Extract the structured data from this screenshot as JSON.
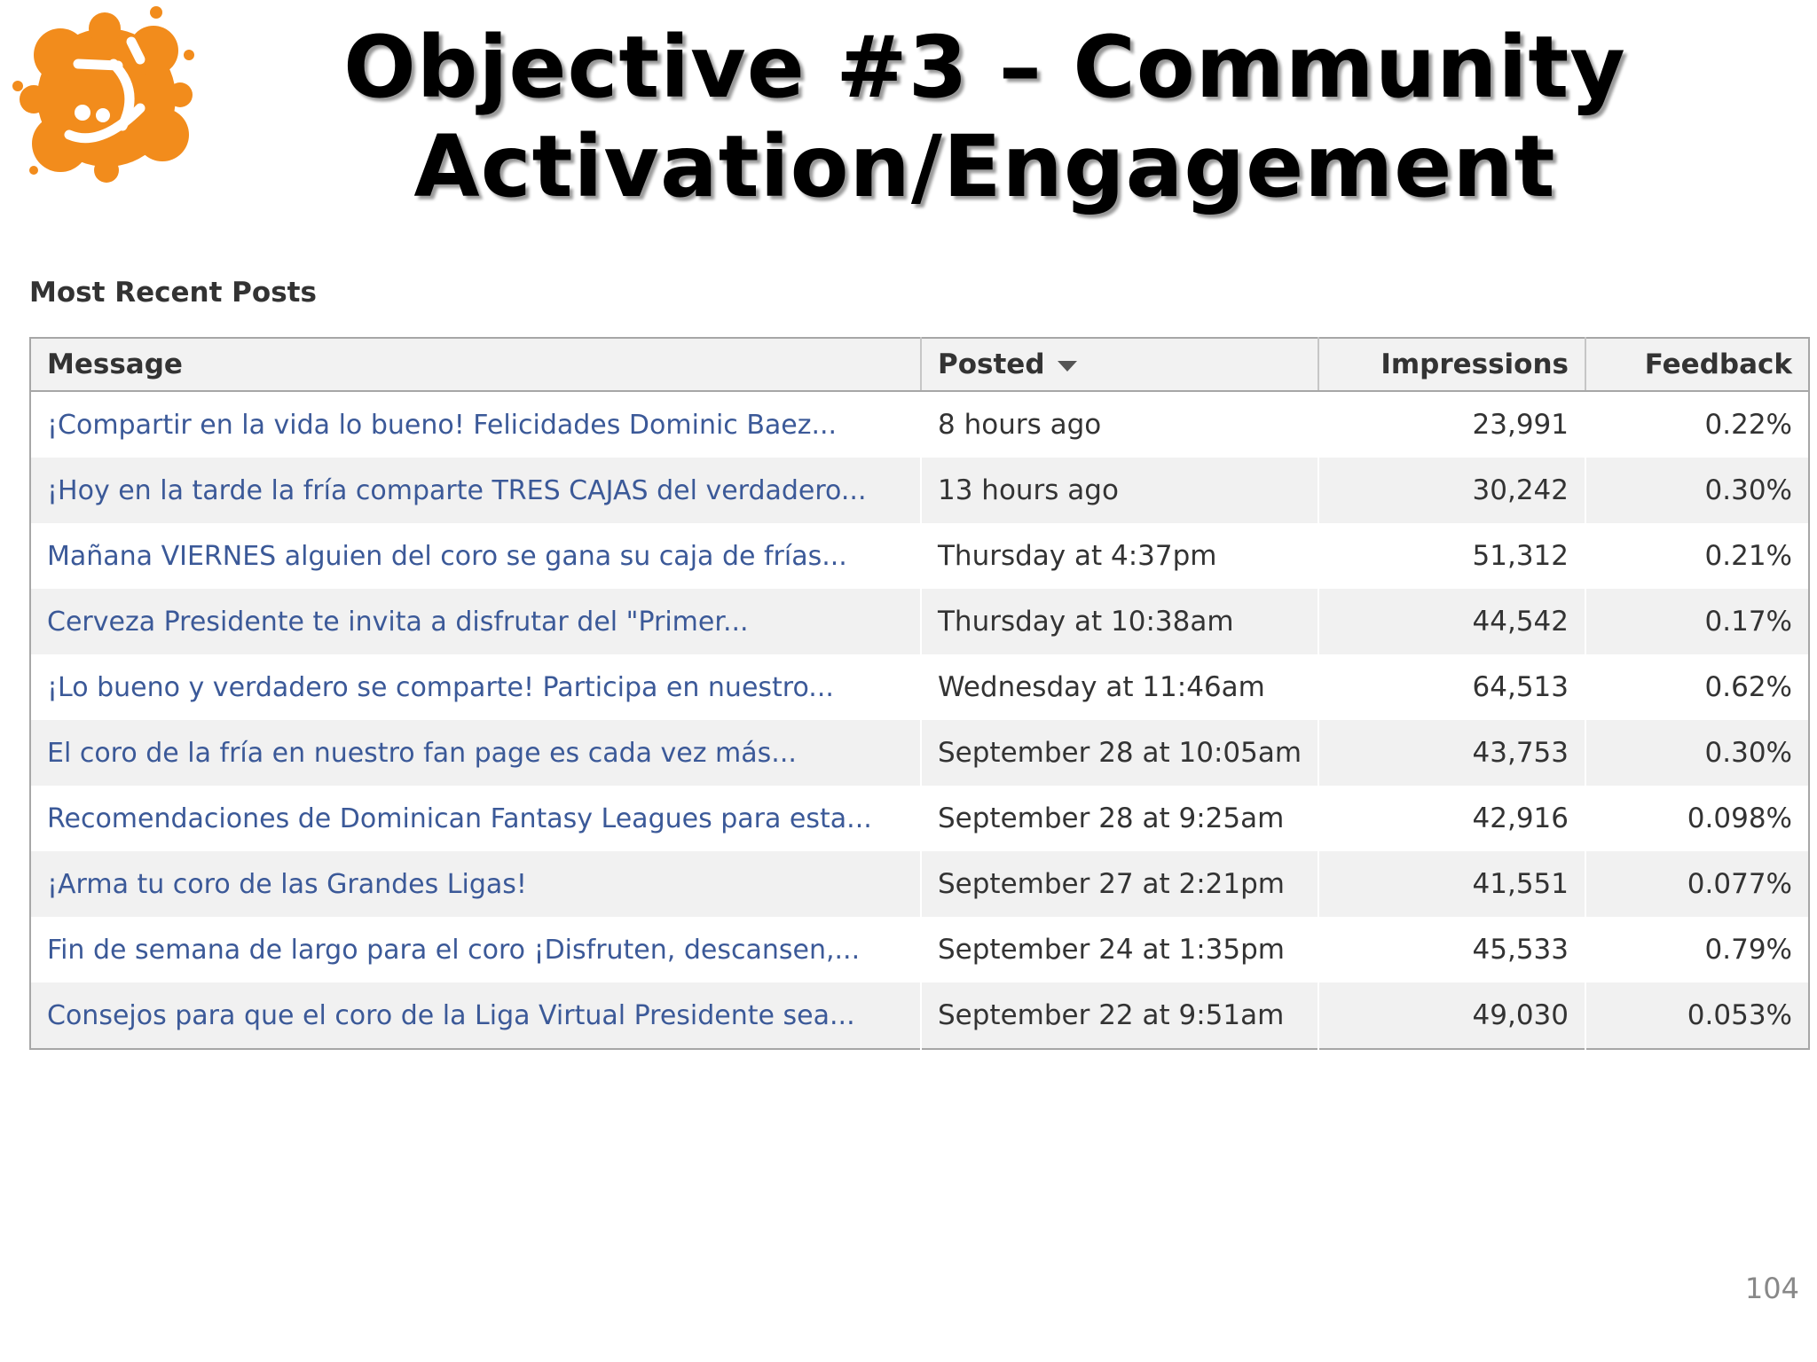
{
  "slide": {
    "title_line1": "Objective #3 – Community",
    "title_line2": "Activation/Engagement",
    "page_number": "104"
  },
  "logo": {
    "icon": "orange-paint-splash-logo-icon",
    "color": "#f28c1c"
  },
  "section": {
    "heading": "Most Recent Posts"
  },
  "table": {
    "columns": [
      {
        "label": "Message"
      },
      {
        "label": "Posted",
        "sort_icon": "caret-down-icon"
      },
      {
        "label": "Impressions"
      },
      {
        "label": "Feedback"
      }
    ],
    "rows": [
      {
        "message": "¡Compartir en la vida lo bueno! Felicidades Dominic Baez...",
        "posted": "8 hours ago",
        "impressions": "23,991",
        "feedback": "0.22%"
      },
      {
        "message": "¡Hoy en la tarde la fría comparte TRES CAJAS del verdadero...",
        "posted": "13 hours ago",
        "impressions": "30,242",
        "feedback": "0.30%"
      },
      {
        "message": "Mañana VIERNES alguien del coro se gana su caja de frías...",
        "posted": "Thursday at 4:37pm",
        "impressions": "51,312",
        "feedback": "0.21%"
      },
      {
        "message": "Cerveza Presidente te invita a disfrutar del \"Primer...",
        "posted": "Thursday at 10:38am",
        "impressions": "44,542",
        "feedback": "0.17%"
      },
      {
        "message": "¡Lo bueno y verdadero se comparte! Participa en nuestro...",
        "posted": "Wednesday at 11:46am",
        "impressions": "64,513",
        "feedback": "0.62%"
      },
      {
        "message": "El coro de la fría en nuestro fan page es cada vez más...",
        "posted": "September 28 at 10:05am",
        "impressions": "43,753",
        "feedback": "0.30%"
      },
      {
        "message": "Recomendaciones de Dominican Fantasy Leagues para esta...",
        "posted": "September 28 at 9:25am",
        "impressions": "42,916",
        "feedback": "0.098%"
      },
      {
        "message": "¡Arma tu coro de las Grandes Ligas!",
        "posted": "September 27 at 2:21pm",
        "impressions": "41,551",
        "feedback": "0.077%"
      },
      {
        "message": "Fin de semana de largo para el coro ¡Disfruten, descansen,...",
        "posted": "September 24 at 1:35pm",
        "impressions": "45,533",
        "feedback": "0.79%"
      },
      {
        "message": "Consejos para que el coro de la Liga Virtual Presidente sea...",
        "posted": "September 22 at 9:51am",
        "impressions": "49,030",
        "feedback": "0.053%"
      }
    ]
  }
}
